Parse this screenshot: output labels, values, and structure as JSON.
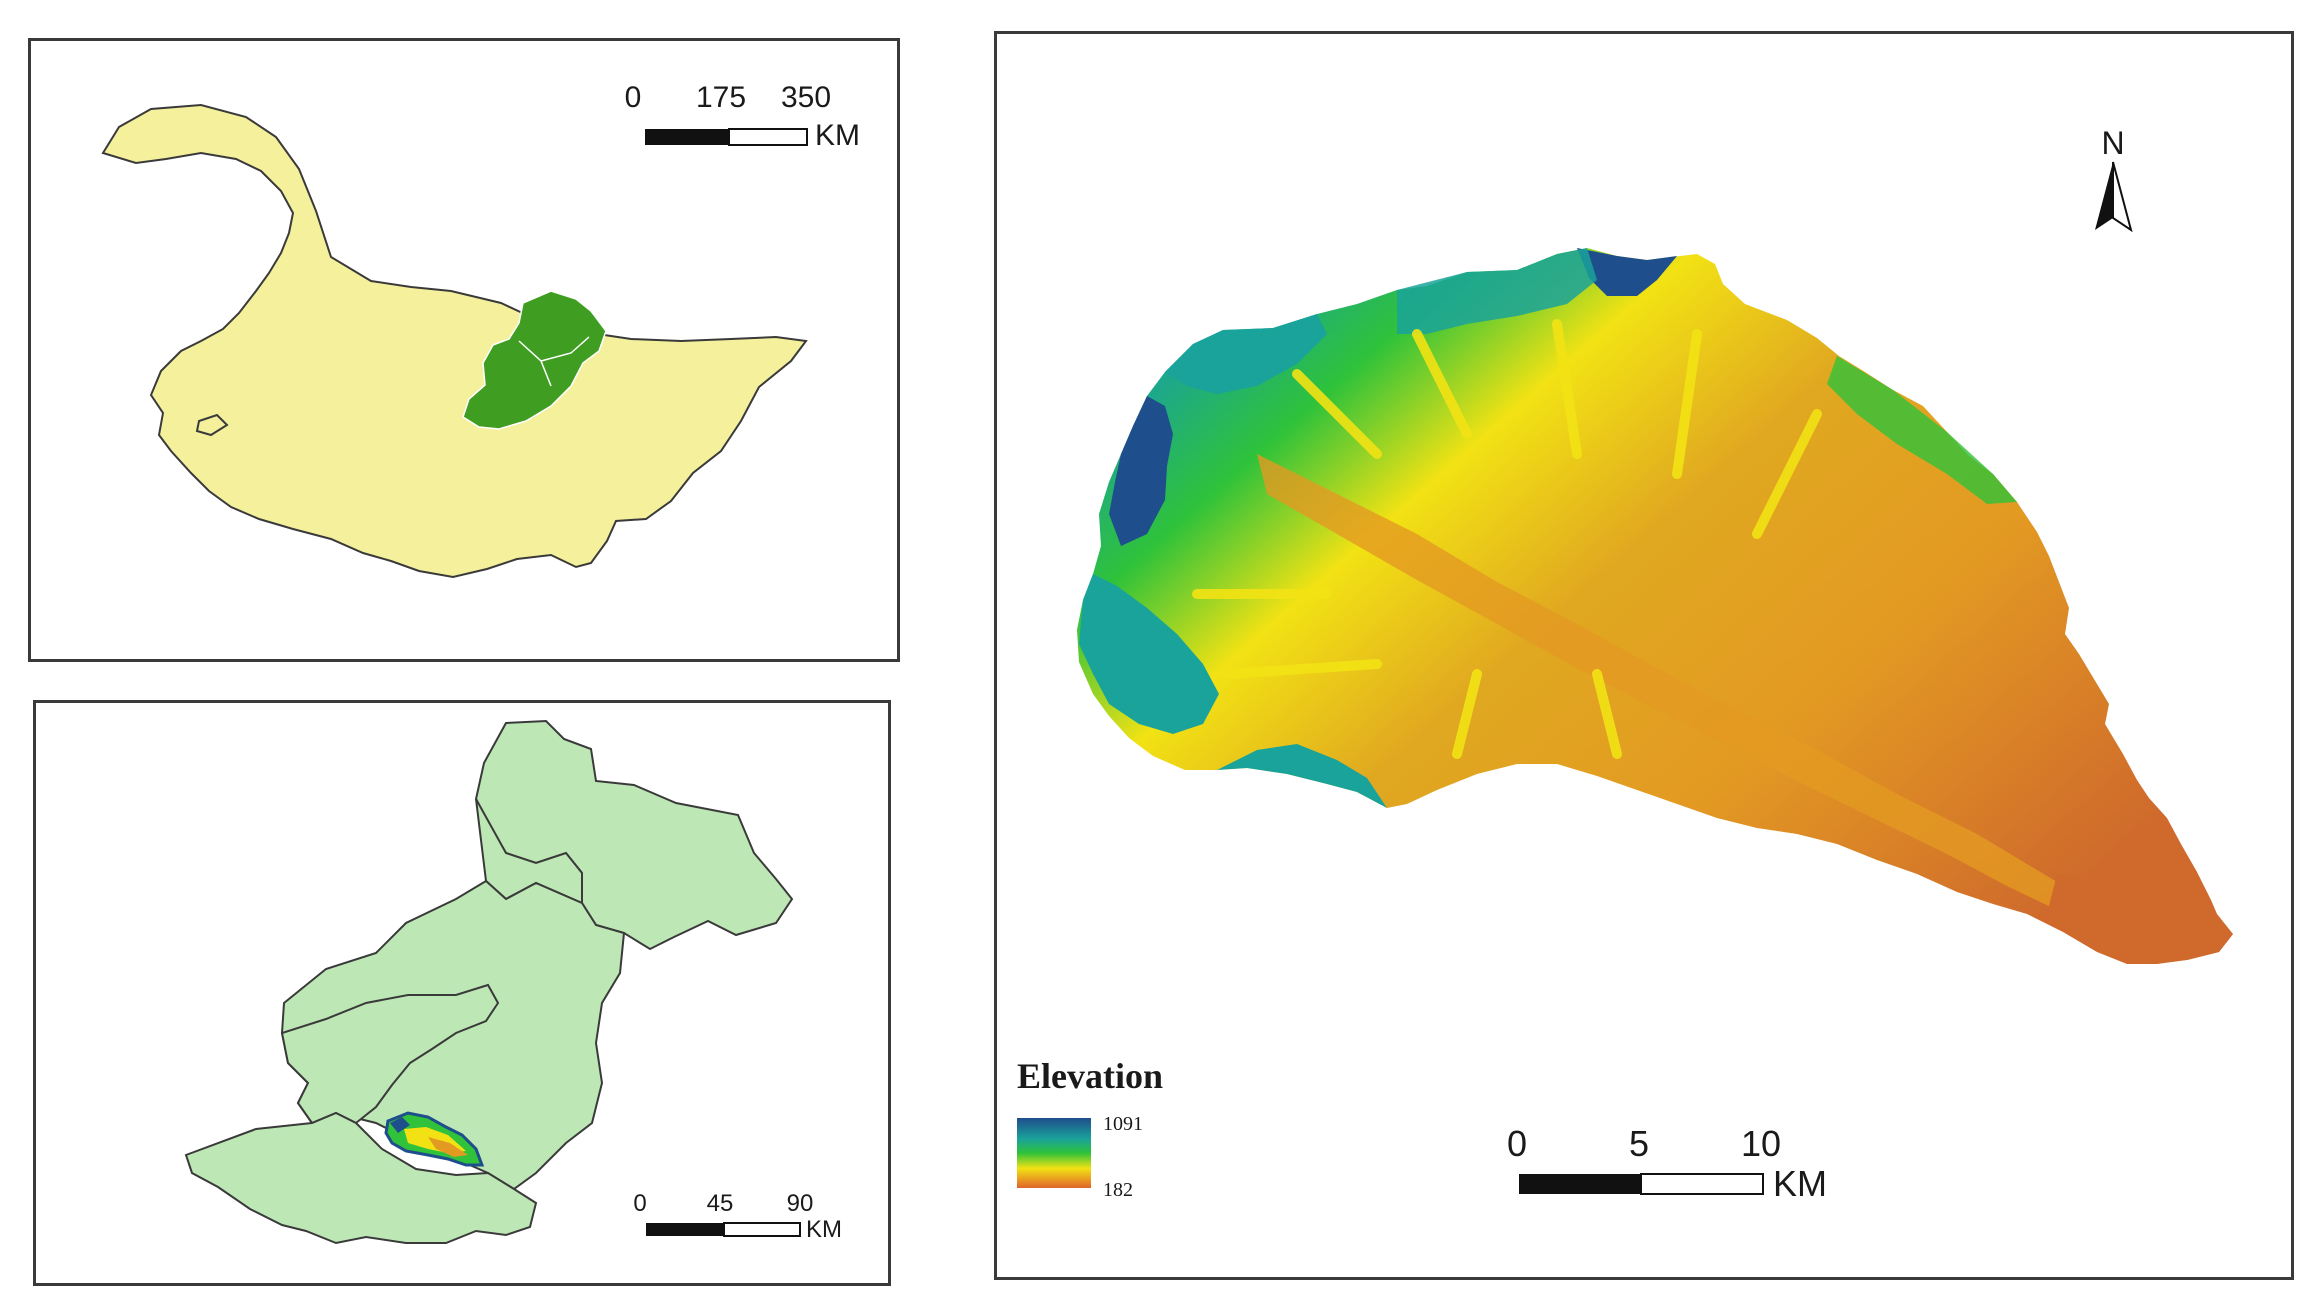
{
  "figure": {
    "panel_a": {
      "scale_ticks": [
        "0",
        "175",
        "350"
      ],
      "scale_unit": "KM",
      "colors": {
        "province": "#f4f09c",
        "region": "#3f9e22",
        "outline": "#3a3a3a"
      }
    },
    "panel_b": {
      "scale_ticks": [
        "0",
        "45",
        "90"
      ],
      "scale_unit": "KM",
      "colors": {
        "counties": "#bde8b6",
        "outline": "#3a3a3a"
      }
    },
    "panel_c": {
      "north_label": "N",
      "legend": {
        "title": "Elevation",
        "max_label": "1091",
        "min_label": "182"
      },
      "scale_ticks": [
        "0",
        "5",
        "10"
      ],
      "scale_unit": "KM",
      "colors": {
        "high": "#1f4e8c",
        "upper": "#1aa39a",
        "mid": "#2fc23a",
        "low_mid": "#f2e214",
        "low": "#e39a22",
        "lowest": "#cf6a2c"
      }
    }
  }
}
